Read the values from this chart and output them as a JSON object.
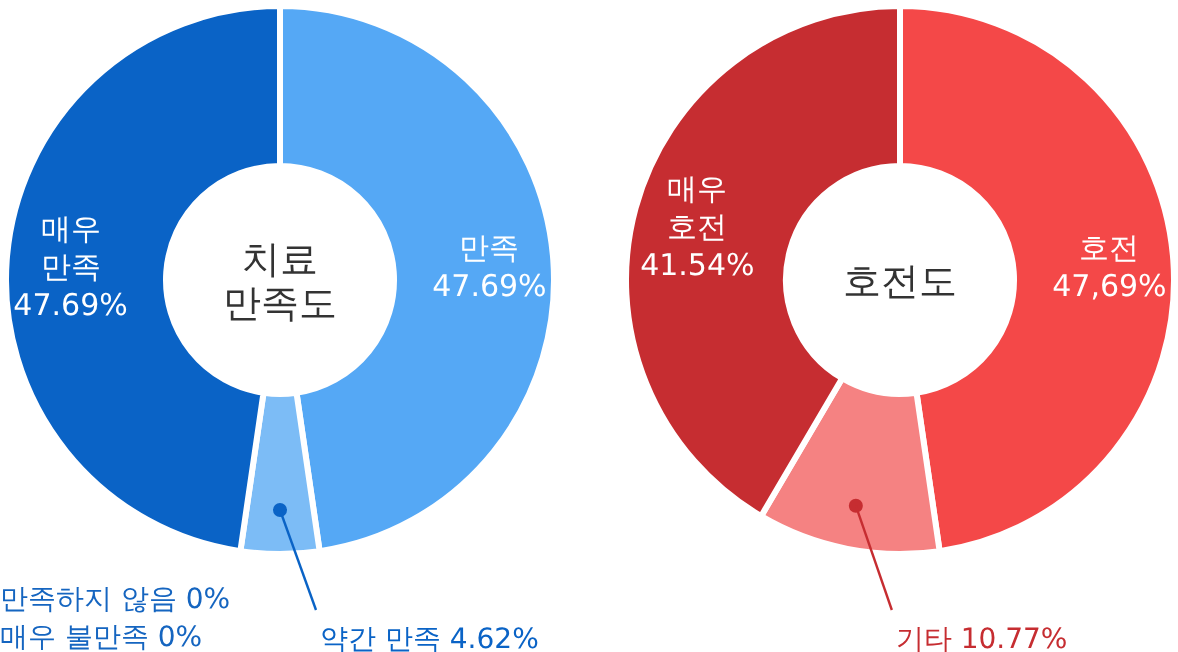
{
  "chart_data": [
    {
      "type": "donut",
      "title": "치료 만족도",
      "categories": [
        "만족",
        "약간 만족",
        "만족하지 않음",
        "매우 불만족",
        "매우 만족"
      ],
      "values": [
        47.69,
        4.62,
        0,
        0,
        47.69
      ],
      "colors": [
        "#55a8f5",
        "#7cbcf6",
        "#1565c0",
        "#1565c0",
        "#0a63c6"
      ],
      "value_labels": [
        "47.69%",
        "4.62%",
        "0%",
        "0%",
        "47.69%"
      ]
    },
    {
      "type": "donut",
      "title": "호전도",
      "categories": [
        "호전",
        "기타",
        "매우 호전"
      ],
      "values": [
        47.69,
        10.77,
        41.54
      ],
      "colors": [
        "#f44848",
        "#f58282",
        "#c62d31"
      ],
      "value_labels": [
        "47,69%",
        "10.77%",
        "41.54%"
      ]
    }
  ]
}
